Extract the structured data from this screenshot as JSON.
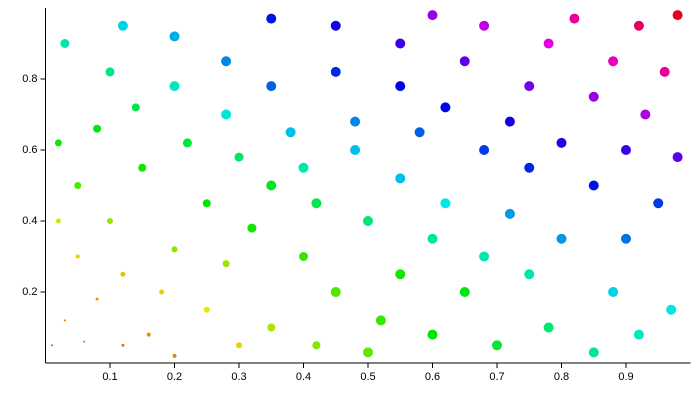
{
  "chart_data": {
    "type": "scatter",
    "x": [
      0.01,
      0.03,
      0.06,
      0.12,
      0.08,
      0.16,
      0.2,
      0.05,
      0.12,
      0.18,
      0.25,
      0.3,
      0.02,
      0.1,
      0.2,
      0.28,
      0.35,
      0.42,
      0.05,
      0.15,
      0.25,
      0.32,
      0.4,
      0.45,
      0.52,
      0.5,
      0.6,
      0.65,
      0.55,
      0.7,
      0.78,
      0.85,
      0.92,
      0.97,
      0.88,
      0.75,
      0.68,
      0.6,
      0.5,
      0.42,
      0.35,
      0.02,
      0.08,
      0.14,
      0.22,
      0.3,
      0.4,
      0.48,
      0.55,
      0.62,
      0.72,
      0.8,
      0.9,
      0.95,
      0.85,
      0.75,
      0.68,
      0.58,
      0.48,
      0.38,
      0.28,
      0.2,
      0.1,
      0.03,
      0.12,
      0.2,
      0.28,
      0.35,
      0.45,
      0.55,
      0.62,
      0.72,
      0.8,
      0.9,
      0.98,
      0.93,
      0.85,
      0.75,
      0.65,
      0.55,
      0.45,
      0.35,
      0.68,
      0.78,
      0.88,
      0.96,
      0.92,
      0.98,
      0.82,
      0.6
    ],
    "values": [
      0.05,
      0.12,
      0.06,
      0.05,
      0.18,
      0.08,
      0.02,
      0.3,
      0.25,
      0.2,
      0.15,
      0.05,
      0.4,
      0.4,
      0.32,
      0.28,
      0.1,
      0.05,
      0.5,
      0.55,
      0.45,
      0.38,
      0.3,
      0.2,
      0.12,
      0.03,
      0.08,
      0.2,
      0.25,
      0.05,
      0.1,
      0.03,
      0.08,
      0.15,
      0.2,
      0.25,
      0.3,
      0.35,
      0.4,
      0.45,
      0.5,
      0.62,
      0.66,
      0.72,
      0.62,
      0.58,
      0.55,
      0.6,
      0.52,
      0.45,
      0.42,
      0.35,
      0.35,
      0.45,
      0.5,
      0.55,
      0.6,
      0.65,
      0.68,
      0.65,
      0.7,
      0.78,
      0.82,
      0.9,
      0.95,
      0.92,
      0.85,
      0.78,
      0.82,
      0.78,
      0.72,
      0.68,
      0.62,
      0.6,
      0.58,
      0.7,
      0.75,
      0.78,
      0.85,
      0.9,
      0.95,
      0.97,
      0.95,
      0.9,
      0.85,
      0.82,
      0.95,
      0.98,
      0.97,
      0.98
    ],
    "sizes": [
      1,
      1,
      1,
      1.5,
      1.5,
      2,
      2,
      2,
      2.5,
      2.5,
      3,
      3,
      2.5,
      3,
      3,
      3.5,
      4,
      4,
      3.5,
      4,
      4,
      4.5,
      4.5,
      5,
      5,
      5,
      5,
      5,
      5,
      5,
      5,
      5,
      5,
      5,
      5,
      5,
      5,
      5,
      5,
      5,
      5,
      3.5,
      4,
      4,
      4.5,
      4.5,
      5,
      5,
      5,
      5,
      5,
      5,
      5,
      5,
      5,
      5,
      5,
      5,
      5,
      5,
      5,
      5,
      4.5,
      4.5,
      5,
      5,
      5,
      5,
      5,
      5,
      5,
      5,
      5,
      5,
      5,
      5,
      5,
      5,
      5,
      5,
      5,
      5,
      5,
      5,
      5,
      5,
      5,
      5,
      5,
      5
    ],
    "colors": [
      "hsl(25,100%,45%)",
      "hsl(30,100%,45%)",
      "hsl(28,100%,45%)",
      "hsl(30,100%,45%)",
      "hsl(40,100%,45%)",
      "hsl(38,100%,45%)",
      "hsl(35,100%,45%)",
      "hsl(55,100%,45%)",
      "hsl(50,100%,45%)",
      "hsl(55,100%,45%)",
      "hsl(60,100%,45%)",
      "hsl(55,100%,45%)",
      "hsl(65,100%,45%)",
      "hsl(80,100%,45%)",
      "hsl(85,100%,45%)",
      "hsl(80,100%,45%)",
      "hsl(75,100%,45%)",
      "hsl(85,100%,45%)",
      "hsl(100,100%,45%)",
      "hsl(115,100%,45%)",
      "hsl(120,100%,45%)",
      "hsl(115,100%,45%)",
      "hsl(105,100%,45%)",
      "hsl(100,100%,45%)",
      "hsl(105,100%,45%)",
      "hsl(95,100%,45%)",
      "hsl(120,100%,45%)",
      "hsl(125,100%,45%)",
      "hsl(115,100%,45%)",
      "hsl(135,100%,45%)",
      "hsl(150,100%,45%)",
      "hsl(160,100%,45%)",
      "hsl(170,100%,45%)",
      "hsl(180,100%,45%)",
      "hsl(185,100%,45%)",
      "hsl(165,100%,45%)",
      "hsl(165,100%,45%)",
      "hsl(160,100%,45%)",
      "hsl(150,100%,45%)",
      "hsl(140,100%,45%)",
      "hsl(130,100%,45%)",
      "hsl(115,100%,45%)",
      "hsl(125,100%,45%)",
      "hsl(140,100%,45%)",
      "hsl(135,100%,45%)",
      "hsl(145,100%,45%)",
      "hsl(165,100%,45%)",
      "hsl(190,100%,45%)",
      "hsl(190,100%,45%)",
      "hsl(180,100%,45%)",
      "hsl(200,100%,45%)",
      "hsl(200,100%,45%)",
      "hsl(210,100%,45%)",
      "hsl(225,100%,45%)",
      "hsl(235,100%,45%)",
      "hsl(230,100%,45%)",
      "hsl(225,100%,45%)",
      "hsl(215,100%,45%)",
      "hsl(205,100%,45%)",
      "hsl(190,100%,45%)",
      "hsl(175,100%,45%)",
      "hsl(170,100%,45%)",
      "hsl(155,100%,45%)",
      "hsl(165,100%,45%)",
      "hsl(185,100%,45%)",
      "hsl(195,100%,45%)",
      "hsl(205,100%,45%)",
      "hsl(215,100%,45%)",
      "hsl(230,100%,45%)",
      "hsl(240,100%,45%)",
      "hsl(240,100%,45%)",
      "hsl(245,100%,45%)",
      "hsl(250,100%,45%)",
      "hsl(255,100%,45%)",
      "hsl(265,100%,45%)",
      "hsl(285,100%,45%)",
      "hsl(280,100%,45%)",
      "hsl(270,100%,45%)",
      "hsl(265,100%,45%)",
      "hsl(255,100%,45%)",
      "hsl(245,100%,45%)",
      "hsl(235,100%,45%)",
      "hsl(290,100%,45%)",
      "hsl(300,100%,45%)",
      "hsl(310,100%,45%)",
      "hsl(320,100%,45%)",
      "hsl(335,100%,45%)",
      "hsl(350,100%,45%)",
      "hsl(320,100%,45%)",
      "hsl(280,100%,45%)"
    ],
    "xlim": [
      0,
      1
    ],
    "ylim": [
      0,
      1
    ],
    "xticks": [
      0.1,
      0.2,
      0.3,
      0.4,
      0.5,
      0.6,
      0.7,
      0.8,
      0.9
    ],
    "yticks": [
      0.2,
      0.4,
      0.6,
      0.8
    ]
  }
}
